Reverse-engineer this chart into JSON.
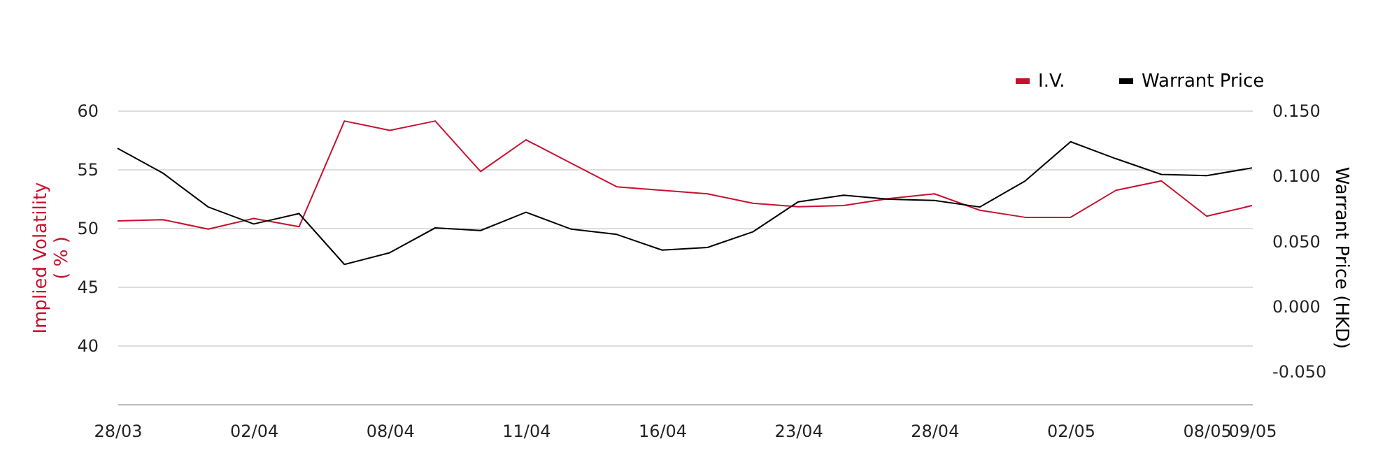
{
  "chart_data": {
    "type": "line",
    "categories": [
      "28/03",
      null,
      null,
      "02/04",
      null,
      null,
      "08/04",
      null,
      null,
      "11/04",
      null,
      null,
      "16/04",
      null,
      null,
      "23/04",
      null,
      null,
      "28/04",
      null,
      null,
      "02/05",
      null,
      null,
      "08/05",
      "09/05"
    ],
    "series": [
      {
        "name": "I.V.",
        "color": "#c8102e",
        "values": [
          50.6,
          50.7,
          49.9,
          50.8,
          50.1,
          59.1,
          58.3,
          59.1,
          54.8,
          57.5,
          55.5,
          53.5,
          53.2,
          52.9,
          52.1,
          51.8,
          51.9,
          52.5,
          52.9,
          51.5,
          50.9,
          50.9,
          53.2,
          54.0,
          51.0,
          51.9
        ]
      },
      {
        "name": "Warrant Price",
        "color": "#000000",
        "axis": "y2",
        "values": [
          0.121,
          0.102,
          0.076,
          0.063,
          0.071,
          0.032,
          0.041,
          0.06,
          0.058,
          0.072,
          0.059,
          0.055,
          0.043,
          0.045,
          0.057,
          0.08,
          0.085,
          0.082,
          0.081,
          0.076,
          0.096,
          0.126,
          0.113,
          0.101,
          0.1,
          0.106
        ]
      }
    ],
    "ylabel": "Implied Volatility\n( % )",
    "y2label": "Warrant Price (HKD)",
    "ylim": [
      35,
      60
    ],
    "yticks": [
      40,
      45,
      50,
      55,
      60
    ],
    "y2lim": [
      -0.075,
      0.15
    ],
    "y2ticks": [
      {
        "value": -0.05,
        "label": "-0.050"
      },
      {
        "value": 0,
        "label": "0.000"
      },
      {
        "value": 0.05,
        "label": "0.050"
      },
      {
        "value": 0.1,
        "label": "0.100"
      },
      {
        "value": 0.15,
        "label": "0.150"
      }
    ],
    "grid": "y",
    "legend": "top right",
    "marker": "none",
    "line_style": "solid"
  }
}
